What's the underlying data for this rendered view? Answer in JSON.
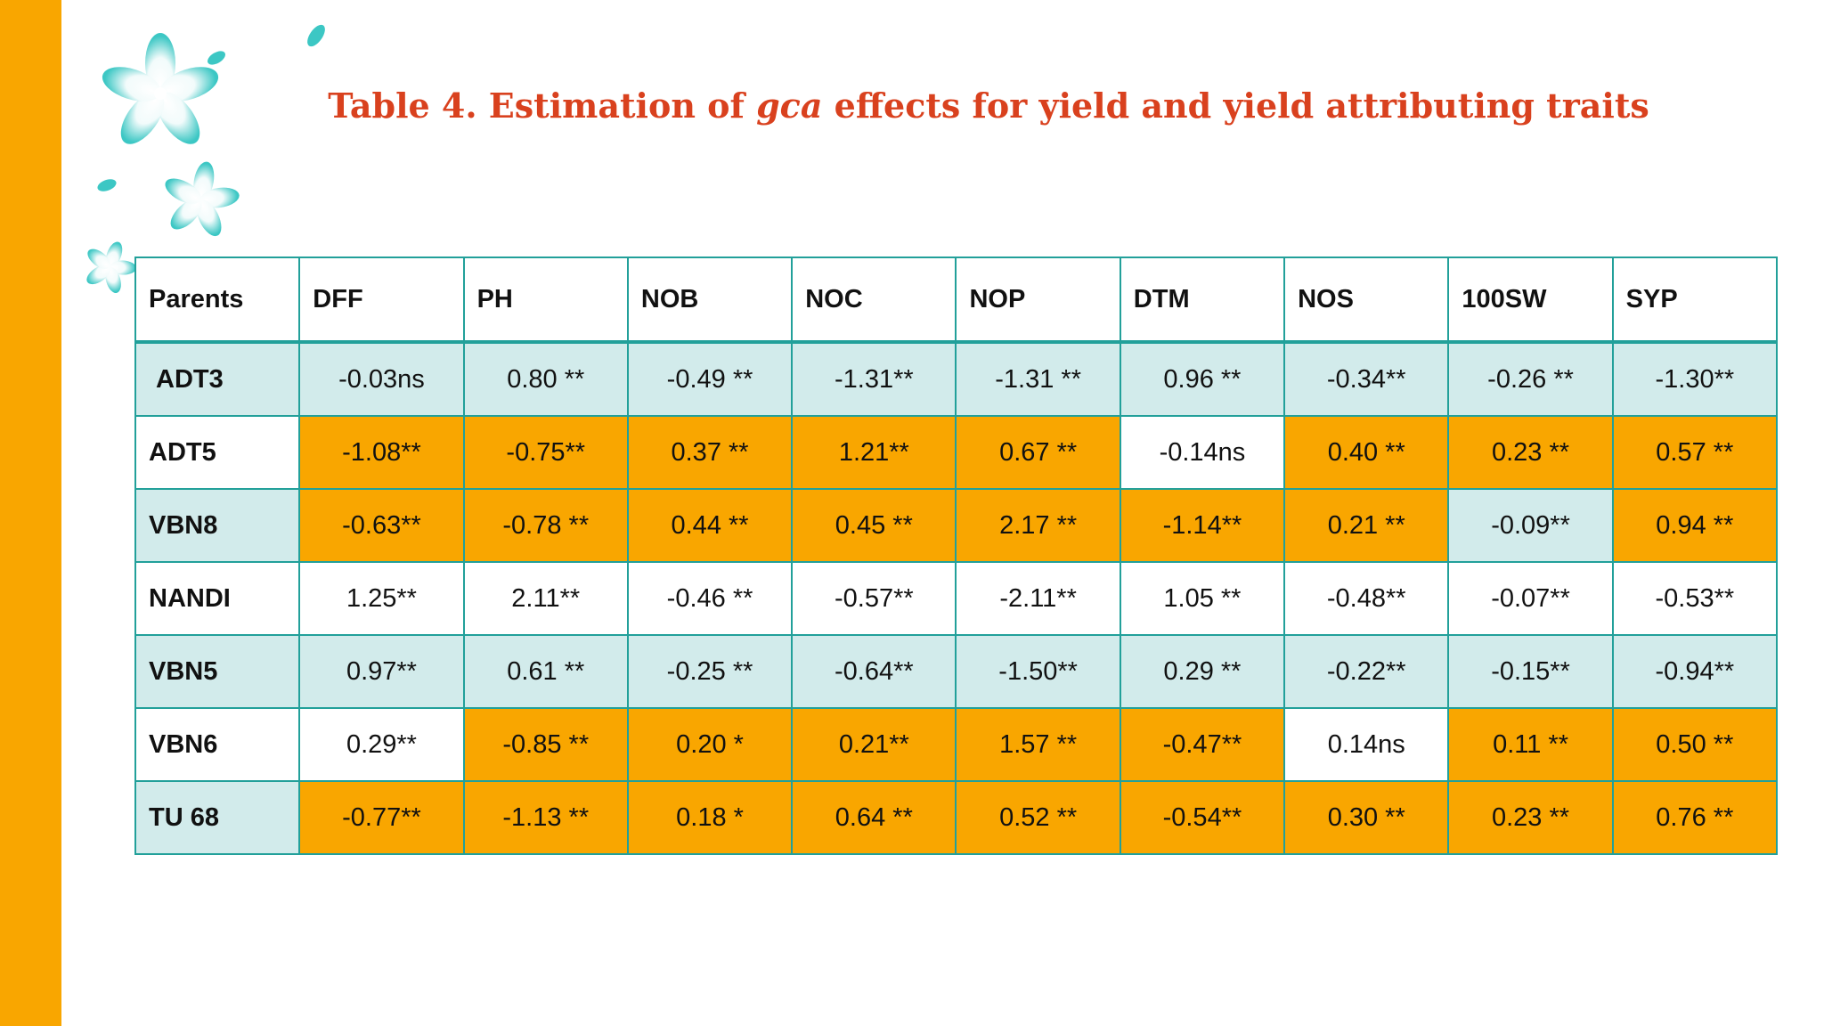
{
  "title": {
    "prefix": "Table 4. Estimation of ",
    "emphasis": "gca",
    "suffix": " effects for yield and yield attributing traits"
  },
  "colors": {
    "sidebar": "#F9A600",
    "highlight": "#F9A600",
    "teal_row": "#D2EBEB",
    "border": "#22A09A",
    "title": "#D9411E"
  },
  "table": {
    "headers": [
      "Parents",
      "DFF",
      "PH",
      "NOB",
      "NOC",
      "NOP",
      "DTM",
      "NOS",
      "100SW",
      "SYP"
    ],
    "rows": [
      {
        "parent": "ADT3",
        "values": [
          "-0.03ns",
          "0.80 **",
          "-0.49 **",
          "-1.31**",
          "-1.31 **",
          "0.96 **",
          "-0.34**",
          "-0.26 **",
          "-1.30**"
        ],
        "highlighted": [
          false,
          false,
          false,
          false,
          false,
          false,
          false,
          false,
          false
        ]
      },
      {
        "parent": "ADT5",
        "values": [
          "-1.08**",
          "-0.75**",
          "0.37 **",
          "1.21**",
          "0.67 **",
          "-0.14ns",
          "0.40 **",
          "0.23 **",
          "0.57 **"
        ],
        "highlighted": [
          true,
          true,
          true,
          true,
          true,
          false,
          true,
          true,
          true
        ]
      },
      {
        "parent": "VBN8",
        "values": [
          "-0.63**",
          "-0.78 **",
          "0.44 **",
          "0.45 **",
          "2.17 **",
          "-1.14**",
          "0.21 **",
          "-0.09**",
          "0.94 **"
        ],
        "highlighted": [
          true,
          true,
          true,
          true,
          true,
          true,
          true,
          false,
          true
        ]
      },
      {
        "parent": "NANDI",
        "values": [
          "1.25**",
          "2.11**",
          "-0.46 **",
          "-0.57**",
          "-2.11**",
          "1.05 **",
          "-0.48**",
          "-0.07**",
          "-0.53**"
        ],
        "highlighted": [
          false,
          false,
          false,
          false,
          false,
          false,
          false,
          false,
          false
        ]
      },
      {
        "parent": "VBN5",
        "values": [
          "0.97**",
          "0.61 **",
          "-0.25 **",
          "-0.64**",
          "-1.50**",
          "0.29 **",
          "-0.22**",
          "-0.15**",
          "-0.94**"
        ],
        "highlighted": [
          false,
          false,
          false,
          false,
          false,
          false,
          false,
          false,
          false
        ]
      },
      {
        "parent": "VBN6",
        "values": [
          "0.29**",
          "-0.85 **",
          "0.20 *",
          "0.21**",
          "1.57 **",
          "-0.47**",
          "0.14ns",
          "0.11 **",
          "0.50 **"
        ],
        "highlighted": [
          false,
          true,
          true,
          true,
          true,
          true,
          false,
          true,
          true
        ]
      },
      {
        "parent": "TU 68",
        "values": [
          "-0.77**",
          "-1.13 **",
          "0.18 *",
          "0.64 **",
          "0.52 **",
          "-0.54**",
          "0.30 **",
          "0.23 **",
          "0.76 **"
        ],
        "highlighted": [
          true,
          true,
          true,
          true,
          true,
          true,
          true,
          true,
          true
        ]
      }
    ]
  }
}
